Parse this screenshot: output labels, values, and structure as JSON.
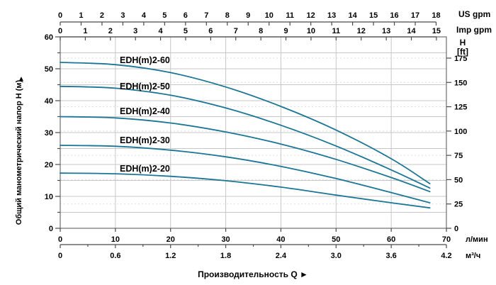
{
  "chart_data": {
    "type": "line",
    "title": "",
    "legend_position": "inline-labels",
    "grid": true,
    "xlabel": "Производительность Q",
    "xlabel_arrow": "►",
    "series": [
      {
        "name": "EDH(m)2-60",
        "points": [
          [
            0,
            52
          ],
          [
            10,
            51.3
          ],
          [
            20,
            48.8
          ],
          [
            30,
            44.3
          ],
          [
            40,
            38.2
          ],
          [
            50,
            30.8
          ],
          [
            60,
            21.8
          ],
          [
            67,
            14
          ]
        ]
      },
      {
        "name": "EDH(m)2-50",
        "points": [
          [
            0,
            44.5
          ],
          [
            10,
            43.9
          ],
          [
            20,
            41.7
          ],
          [
            30,
            37.7
          ],
          [
            40,
            32.3
          ],
          [
            50,
            25.8
          ],
          [
            60,
            18.3
          ],
          [
            67,
            12.6
          ]
        ]
      },
      {
        "name": "EDH(m)2-40",
        "points": [
          [
            0,
            35
          ],
          [
            10,
            34.6
          ],
          [
            20,
            33
          ],
          [
            30,
            30.2
          ],
          [
            40,
            26.4
          ],
          [
            50,
            21.6
          ],
          [
            60,
            15.9
          ],
          [
            67,
            11.5
          ]
        ]
      },
      {
        "name": "EDH(m)2-30",
        "points": [
          [
            0,
            26
          ],
          [
            10,
            25.7
          ],
          [
            20,
            24.5
          ],
          [
            30,
            22.4
          ],
          [
            40,
            19.4
          ],
          [
            50,
            15.6
          ],
          [
            60,
            11.2
          ],
          [
            67,
            8
          ]
        ]
      },
      {
        "name": "EDH(m)2-20",
        "points": [
          [
            0,
            17.3
          ],
          [
            10,
            17.1
          ],
          [
            20,
            16.3
          ],
          [
            30,
            14.9
          ],
          [
            40,
            12.9
          ],
          [
            50,
            10.4
          ],
          [
            60,
            8
          ],
          [
            67,
            6.4
          ]
        ]
      }
    ],
    "axes": {
      "top_us_gpm": {
        "unit": "US gpm",
        "ticks": [
          0,
          1,
          2,
          3,
          4,
          5,
          6,
          7,
          8,
          9,
          10,
          11,
          12,
          13,
          14,
          15,
          16,
          17,
          18
        ]
      },
      "top_imp_gpm": {
        "unit": "Imp gpm",
        "ticks": [
          0,
          1,
          2,
          3,
          4,
          5,
          6,
          7,
          8,
          9,
          10,
          11,
          12,
          13,
          14,
          15
        ]
      },
      "left_m": {
        "label": "Общий манометрический напор H (м)",
        "arrow": "▲",
        "range": [
          0,
          60
        ],
        "ticks": [
          0,
          10,
          20,
          30,
          40,
          50,
          60
        ],
        "minor_step": 5
      },
      "right_ft": {
        "title": "H",
        "unit": "[ft]",
        "ticks": [
          0,
          25,
          50,
          75,
          100,
          125,
          150,
          175
        ]
      },
      "bottom_lmin": {
        "unit": "л/мин",
        "range": [
          0,
          70
        ],
        "ticks": [
          0,
          10,
          20,
          30,
          40,
          50,
          60,
          70
        ]
      },
      "bottom_m3h": {
        "unit": "м³/ч",
        "tick_labels": [
          "0",
          "0.6",
          "1.2",
          "1.8",
          "2.4",
          "3.0",
          "3.6",
          "4.2"
        ]
      }
    },
    "colors": {
      "curve": "#1b7696",
      "grid": "#c7c7c7",
      "grid_dashed": "#dedede",
      "axis": "#4a4a4a",
      "text": "#000000"
    }
  }
}
